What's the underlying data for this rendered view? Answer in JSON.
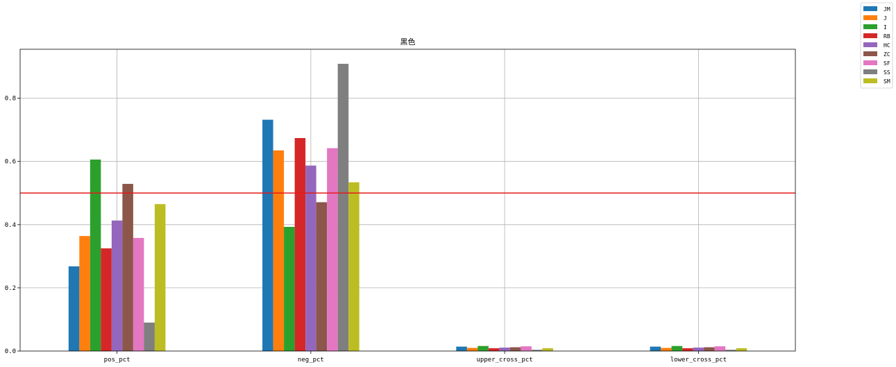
{
  "chart_data": {
    "type": "bar",
    "title": "黑色",
    "xlabel": "",
    "ylabel": "",
    "categories": [
      "pos_pct",
      "neg_pct",
      "upper_cross_pct",
      "lower_cross_pct"
    ],
    "ylim": [
      0,
      0.955
    ],
    "yticks": [
      "0.0",
      "0.2",
      "0.4",
      "0.6",
      "0.8"
    ],
    "ytick_values": [
      0,
      0.2,
      0.4,
      0.6,
      0.8
    ],
    "grid": true,
    "legend_position": "top-right",
    "reference_line": {
      "y": 0.5,
      "color": "#e41a1c"
    },
    "series": [
      {
        "name": "JM",
        "color": "#1f77b4",
        "values": [
          0.268,
          0.732,
          0.014,
          0.014
        ]
      },
      {
        "name": "J",
        "color": "#ff7f0e",
        "values": [
          0.364,
          0.635,
          0.01,
          0.01
        ]
      },
      {
        "name": "I",
        "color": "#2ca02c",
        "values": [
          0.606,
          0.393,
          0.016,
          0.016
        ]
      },
      {
        "name": "RB",
        "color": "#d62728",
        "values": [
          0.325,
          0.674,
          0.009,
          0.009
        ]
      },
      {
        "name": "HC",
        "color": "#9467bd",
        "values": [
          0.413,
          0.587,
          0.011,
          0.011
        ]
      },
      {
        "name": "ZC",
        "color": "#8c564b",
        "values": [
          0.529,
          0.471,
          0.012,
          0.012
        ]
      },
      {
        "name": "SF",
        "color": "#e377c2",
        "values": [
          0.358,
          0.642,
          0.015,
          0.015
        ]
      },
      {
        "name": "SS",
        "color": "#7f7f7f",
        "values": [
          0.09,
          0.909,
          0.004,
          0.004
        ]
      },
      {
        "name": "SM",
        "color": "#bcbd22",
        "values": [
          0.465,
          0.534,
          0.009,
          0.009
        ]
      }
    ]
  }
}
